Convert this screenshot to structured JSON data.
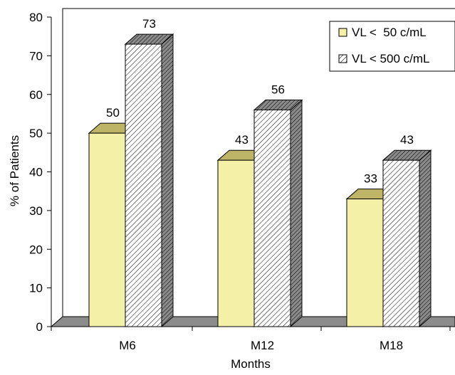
{
  "chart_data": {
    "type": "bar",
    "categories": [
      "M6",
      "M12",
      "M18"
    ],
    "series": [
      {
        "name": "VL <  50 c/mL",
        "values": [
          50,
          43,
          33
        ],
        "color": "#f5f0a8",
        "pattern": "solid"
      },
      {
        "name": "VL < 500 c/mL",
        "values": [
          73,
          56,
          43
        ],
        "color": "#ffffff",
        "pattern": "hatched"
      }
    ],
    "yticks": [
      0,
      10,
      20,
      30,
      40,
      50,
      60,
      70,
      80
    ],
    "ylim": [
      0,
      80
    ],
    "xlabel": "Months",
    "ylabel": "% of Patients",
    "legend_position": "top-right",
    "bar_3d": true,
    "grid": false
  }
}
